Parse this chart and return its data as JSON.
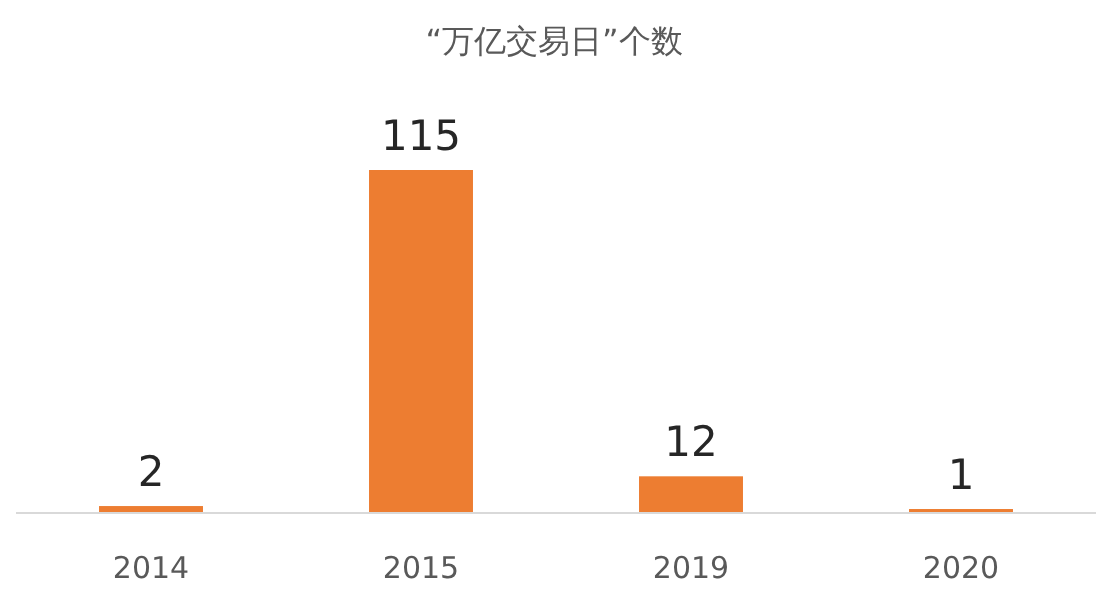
{
  "chart_data": {
    "type": "bar",
    "title": "“万亿交易日”个数",
    "categories": [
      "2014",
      "2015",
      "2019",
      "2020"
    ],
    "values": [
      2,
      115,
      12,
      1
    ],
    "color": "#ed7d31",
    "data_labels": true
  }
}
